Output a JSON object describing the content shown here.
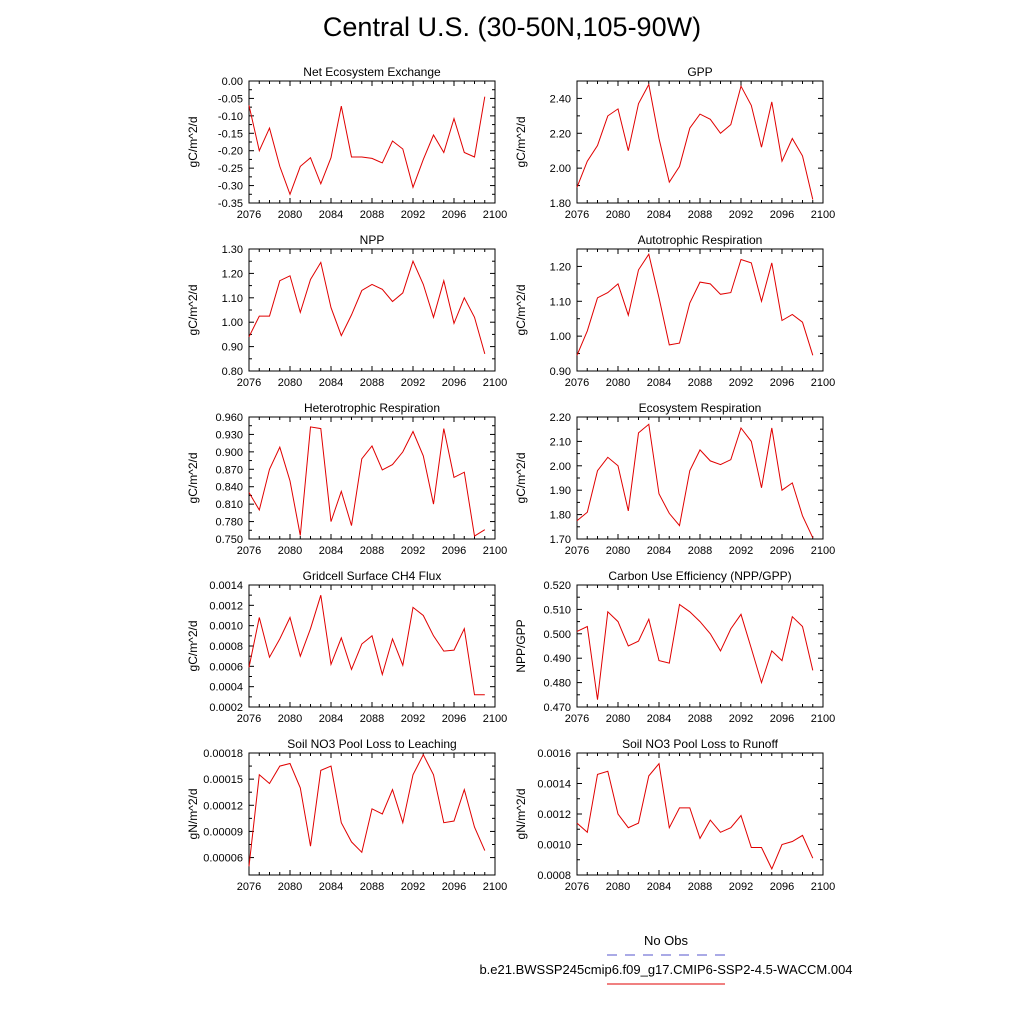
{
  "title": "Central U.S. (30-50N,105-90W)",
  "legend": {
    "obs_label": "No Obs",
    "obs_color": "#5555cc",
    "case_label": "b.e21.BWSSP245cmip6.f09_g17.CMIP6-SSP2-4.5-WACCM.004",
    "case_color": "#e00000"
  },
  "chart_data": [
    {
      "type": "line",
      "title": "Net Ecosystem Exchange",
      "ylabel": "gC/m^2/d",
      "ylim": [
        -0.35,
        0.0
      ],
      "yticks": [
        "0.00",
        "-0.05",
        "-0.10",
        "-0.15",
        "-0.20",
        "-0.25",
        "-0.30",
        "-0.35"
      ],
      "ytick_values": [
        0.0,
        -0.05,
        -0.1,
        -0.15,
        -0.2,
        -0.25,
        -0.3,
        -0.35
      ],
      "xlim": [
        2076,
        2100
      ],
      "xticks": [
        2076,
        2080,
        2084,
        2088,
        2092,
        2096,
        2100
      ],
      "grid": false,
      "series": [
        {
          "color": "#e00000",
          "x": [
            2076,
            2077,
            2078,
            2079,
            2080,
            2081,
            2082,
            2083,
            2084,
            2085,
            2086,
            2087,
            2088,
            2089,
            2090,
            2091,
            2092,
            2093,
            2094,
            2095,
            2096,
            2097,
            2098,
            2099
          ],
          "values": [
            -0.07,
            -0.2,
            -0.135,
            -0.245,
            -0.325,
            -0.245,
            -0.22,
            -0.295,
            -0.22,
            -0.072,
            -0.218,
            -0.218,
            -0.222,
            -0.235,
            -0.172,
            -0.195,
            -0.305,
            -0.225,
            -0.155,
            -0.205,
            -0.108,
            -0.205,
            -0.218,
            -0.045
          ]
        }
      ]
    },
    {
      "type": "line",
      "title": "GPP",
      "ylabel": "gC/m^2/d",
      "ylim": [
        1.8,
        2.5
      ],
      "yticks": [
        "1.80",
        "2.00",
        "2.20",
        "2.40"
      ],
      "ytick_values": [
        1.8,
        2.0,
        2.2,
        2.4
      ],
      "xlim": [
        2076,
        2100
      ],
      "xticks": [
        2076,
        2080,
        2084,
        2088,
        2092,
        2096,
        2100
      ],
      "grid": false,
      "series": [
        {
          "color": "#e00000",
          "x": [
            2076,
            2077,
            2078,
            2079,
            2080,
            2081,
            2082,
            2083,
            2084,
            2085,
            2086,
            2087,
            2088,
            2089,
            2090,
            2091,
            2092,
            2093,
            2094,
            2095,
            2096,
            2097,
            2098,
            2099
          ],
          "values": [
            1.89,
            2.04,
            2.13,
            2.3,
            2.34,
            2.1,
            2.37,
            2.48,
            2.17,
            1.92,
            2.01,
            2.23,
            2.31,
            2.28,
            2.2,
            2.25,
            2.47,
            2.36,
            2.12,
            2.38,
            2.04,
            2.17,
            2.07,
            1.82
          ]
        }
      ]
    },
    {
      "type": "line",
      "title": "NPP",
      "ylabel": "gC/m^2/d",
      "ylim": [
        0.8,
        1.3
      ],
      "yticks": [
        "0.80",
        "0.90",
        "1.00",
        "1.10",
        "1.20",
        "1.30"
      ],
      "ytick_values": [
        0.8,
        0.9,
        1.0,
        1.1,
        1.2,
        1.3
      ],
      "xlim": [
        2076,
        2100
      ],
      "xticks": [
        2076,
        2080,
        2084,
        2088,
        2092,
        2096,
        2100
      ],
      "grid": false,
      "series": [
        {
          "color": "#e00000",
          "x": [
            2076,
            2077,
            2078,
            2079,
            2080,
            2081,
            2082,
            2083,
            2084,
            2085,
            2086,
            2087,
            2088,
            2089,
            2090,
            2091,
            2092,
            2093,
            2094,
            2095,
            2096,
            2097,
            2098,
            2099
          ],
          "values": [
            0.94,
            1.025,
            1.025,
            1.17,
            1.19,
            1.04,
            1.175,
            1.245,
            1.06,
            0.945,
            1.03,
            1.13,
            1.155,
            1.135,
            1.085,
            1.12,
            1.25,
            1.155,
            1.02,
            1.17,
            0.995,
            1.1,
            1.02,
            0.87
          ]
        }
      ]
    },
    {
      "type": "line",
      "title": "Autotrophic Respiration",
      "ylabel": "gC/m^2/d",
      "ylim": [
        0.9,
        1.25
      ],
      "yticks": [
        "0.90",
        "1.00",
        "1.10",
        "1.20"
      ],
      "ytick_values": [
        0.9,
        1.0,
        1.1,
        1.2
      ],
      "xlim": [
        2076,
        2100
      ],
      "xticks": [
        2076,
        2080,
        2084,
        2088,
        2092,
        2096,
        2100
      ],
      "grid": false,
      "series": [
        {
          "color": "#e00000",
          "x": [
            2076,
            2077,
            2078,
            2079,
            2080,
            2081,
            2082,
            2083,
            2084,
            2085,
            2086,
            2087,
            2088,
            2089,
            2090,
            2091,
            2092,
            2093,
            2094,
            2095,
            2096,
            2097,
            2098,
            2099
          ],
          "values": [
            0.945,
            1.015,
            1.11,
            1.125,
            1.15,
            1.06,
            1.19,
            1.235,
            1.11,
            0.975,
            0.98,
            1.095,
            1.155,
            1.15,
            1.12,
            1.125,
            1.22,
            1.21,
            1.1,
            1.21,
            1.045,
            1.062,
            1.04,
            0.945
          ]
        }
      ]
    },
    {
      "type": "line",
      "title": "Heterotrophic Respiration",
      "ylabel": "gC/m^2/d",
      "ylim": [
        0.75,
        0.96
      ],
      "yticks": [
        "0.750",
        "0.780",
        "0.810",
        "0.840",
        "0.870",
        "0.900",
        "0.930",
        "0.960"
      ],
      "ytick_values": [
        0.75,
        0.78,
        0.81,
        0.84,
        0.87,
        0.9,
        0.93,
        0.96
      ],
      "xlim": [
        2076,
        2100
      ],
      "xticks": [
        2076,
        2080,
        2084,
        2088,
        2092,
        2096,
        2100
      ],
      "grid": false,
      "series": [
        {
          "color": "#e00000",
          "x": [
            2076,
            2077,
            2078,
            2079,
            2080,
            2081,
            2082,
            2083,
            2084,
            2085,
            2086,
            2087,
            2088,
            2089,
            2090,
            2091,
            2092,
            2093,
            2094,
            2095,
            2096,
            2097,
            2098,
            2099
          ],
          "values": [
            0.83,
            0.8,
            0.87,
            0.908,
            0.85,
            0.756,
            0.943,
            0.94,
            0.78,
            0.832,
            0.773,
            0.888,
            0.91,
            0.869,
            0.878,
            0.9,
            0.935,
            0.893,
            0.81,
            0.94,
            0.856,
            0.865,
            0.755,
            0.766
          ]
        }
      ]
    },
    {
      "type": "line",
      "title": "Ecosystem Respiration",
      "ylabel": "gC/m^2/d",
      "ylim": [
        1.7,
        2.2
      ],
      "yticks": [
        "1.70",
        "1.80",
        "1.90",
        "2.00",
        "2.10",
        "2.20"
      ],
      "ytick_values": [
        1.7,
        1.8,
        1.9,
        2.0,
        2.1,
        2.2
      ],
      "xlim": [
        2076,
        2100
      ],
      "xticks": [
        2076,
        2080,
        2084,
        2088,
        2092,
        2096,
        2100
      ],
      "grid": false,
      "series": [
        {
          "color": "#e00000",
          "x": [
            2076,
            2077,
            2078,
            2079,
            2080,
            2081,
            2082,
            2083,
            2084,
            2085,
            2086,
            2087,
            2088,
            2089,
            2090,
            2091,
            2092,
            2093,
            2094,
            2095,
            2096,
            2097,
            2098,
            2099
          ],
          "values": [
            1.775,
            1.81,
            1.98,
            2.035,
            2.0,
            1.815,
            2.135,
            2.17,
            1.885,
            1.805,
            1.755,
            1.98,
            2.065,
            2.02,
            2.005,
            2.025,
            2.155,
            2.1,
            1.91,
            2.155,
            1.9,
            1.93,
            1.795,
            1.705
          ]
        }
      ]
    },
    {
      "type": "line",
      "title": "Gridcell Surface CH4 Flux",
      "ylabel": "gC/m^2/d",
      "ylim": [
        0.0002,
        0.0014
      ],
      "yticks": [
        "0.0002",
        "0.0004",
        "0.0006",
        "0.0008",
        "0.0010",
        "0.0012",
        "0.0014"
      ],
      "ytick_values": [
        0.0002,
        0.0004,
        0.0006,
        0.0008,
        0.001,
        0.0012,
        0.0014
      ],
      "xlim": [
        2076,
        2100
      ],
      "xticks": [
        2076,
        2080,
        2084,
        2088,
        2092,
        2096,
        2100
      ],
      "grid": false,
      "series": [
        {
          "color": "#e00000",
          "x": [
            2076,
            2077,
            2078,
            2079,
            2080,
            2081,
            2082,
            2083,
            2084,
            2085,
            2086,
            2087,
            2088,
            2089,
            2090,
            2091,
            2092,
            2093,
            2094,
            2095,
            2096,
            2097,
            2098,
            2099
          ],
          "values": [
            0.00059,
            0.00108,
            0.00069,
            0.00087,
            0.00108,
            0.0007,
            0.00097,
            0.0013,
            0.00062,
            0.00088,
            0.00057,
            0.00082,
            0.0009,
            0.00052,
            0.00087,
            0.00061,
            0.00118,
            0.0011,
            0.0009,
            0.00075,
            0.00076,
            0.00097,
            0.00032,
            0.00032
          ]
        }
      ]
    },
    {
      "type": "line",
      "title": "Carbon Use Efficiency (NPP/GPP)",
      "ylabel": "NPP/GPP",
      "ylim": [
        0.47,
        0.52
      ],
      "yticks": [
        "0.470",
        "0.480",
        "0.490",
        "0.500",
        "0.510",
        "0.520"
      ],
      "ytick_values": [
        0.47,
        0.48,
        0.49,
        0.5,
        0.51,
        0.52
      ],
      "xlim": [
        2076,
        2100
      ],
      "xticks": [
        2076,
        2080,
        2084,
        2088,
        2092,
        2096,
        2100
      ],
      "grid": false,
      "series": [
        {
          "color": "#e00000",
          "x": [
            2076,
            2077,
            2078,
            2079,
            2080,
            2081,
            2082,
            2083,
            2084,
            2085,
            2086,
            2087,
            2088,
            2089,
            2090,
            2091,
            2092,
            2093,
            2094,
            2095,
            2096,
            2097,
            2098,
            2099
          ],
          "values": [
            0.501,
            0.503,
            0.473,
            0.509,
            0.505,
            0.495,
            0.497,
            0.506,
            0.489,
            0.488,
            0.512,
            0.509,
            0.505,
            0.5,
            0.493,
            0.502,
            0.508,
            0.494,
            0.48,
            0.493,
            0.489,
            0.507,
            0.503,
            0.485
          ]
        }
      ]
    },
    {
      "type": "line",
      "title": "Soil NO3 Pool Loss to Leaching",
      "ylabel": "gN/m^2/d",
      "ylim": [
        4e-05,
        0.00018
      ],
      "yticks": [
        "0.00006",
        "0.00009",
        "0.00012",
        "0.00015",
        "0.00018"
      ],
      "ytick_values": [
        6e-05,
        9e-05,
        0.00012,
        0.00015,
        0.00018
      ],
      "xlim": [
        2076,
        2100
      ],
      "xticks": [
        2076,
        2080,
        2084,
        2088,
        2092,
        2096,
        2100
      ],
      "grid": false,
      "series": [
        {
          "color": "#e00000",
          "x": [
            2076,
            2077,
            2078,
            2079,
            2080,
            2081,
            2082,
            2083,
            2084,
            2085,
            2086,
            2087,
            2088,
            2089,
            2090,
            2091,
            2092,
            2093,
            2094,
            2095,
            2096,
            2097,
            2098,
            2099
          ],
          "values": [
            5e-05,
            0.000155,
            0.000145,
            0.000165,
            0.000168,
            0.00014,
            7.3e-05,
            0.00016,
            0.000165,
            0.0001,
            7.8e-05,
            6.6e-05,
            0.000116,
            0.00011,
            0.000138,
            0.0001,
            0.000155,
            0.000178,
            0.000155,
            0.0001,
            0.000102,
            0.000138,
            9.5e-05,
            6.8e-05
          ]
        }
      ]
    },
    {
      "type": "line",
      "title": "Soil NO3 Pool Loss to Runoff",
      "ylabel": "gN/m^2/d",
      "ylim": [
        0.0008,
        0.0016
      ],
      "yticks": [
        "0.0008",
        "0.0010",
        "0.0012",
        "0.0014",
        "0.0016"
      ],
      "ytick_values": [
        0.0008,
        0.001,
        0.0012,
        0.0014,
        0.0016
      ],
      "xlim": [
        2076,
        2100
      ],
      "xticks": [
        2076,
        2080,
        2084,
        2088,
        2092,
        2096,
        2100
      ],
      "grid": false,
      "series": [
        {
          "color": "#e00000",
          "x": [
            2076,
            2077,
            2078,
            2079,
            2080,
            2081,
            2082,
            2083,
            2084,
            2085,
            2086,
            2087,
            2088,
            2089,
            2090,
            2091,
            2092,
            2093,
            2094,
            2095,
            2096,
            2097,
            2098,
            2099
          ],
          "values": [
            0.00114,
            0.00108,
            0.00146,
            0.00148,
            0.0012,
            0.00111,
            0.00114,
            0.00145,
            0.00153,
            0.00111,
            0.00124,
            0.00124,
            0.00104,
            0.00116,
            0.00108,
            0.00111,
            0.00119,
            0.00098,
            0.00098,
            0.00084,
            0.001,
            0.00102,
            0.00106,
            0.00091
          ]
        }
      ]
    }
  ]
}
